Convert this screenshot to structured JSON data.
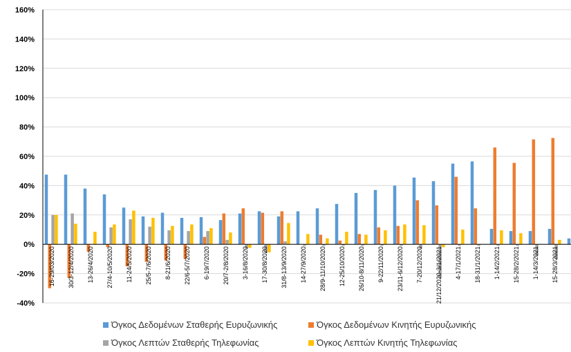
{
  "chart_data": {
    "type": "bar",
    "title": "",
    "xlabel": "",
    "ylabel": "",
    "ylim": [
      -40,
      160
    ],
    "yticks": [
      "-40%",
      "-20%",
      "0%",
      "20%",
      "40%",
      "60%",
      "80%",
      "100%",
      "120%",
      "140%",
      "160%"
    ],
    "ytick_values": [
      -40,
      -20,
      0,
      20,
      40,
      60,
      80,
      100,
      120,
      140,
      160
    ],
    "grid": true,
    "legend_position": "bottom",
    "categories": [
      "16-29/03/2020",
      "30/3-12/4/2020",
      "13-26/4/2020",
      "27/4-10/5/2020",
      "11-24/5/2020",
      "25/5-7/6/2020",
      "8-21/6/2020",
      "22/6-5/7/2020",
      "6-19/7/2020",
      "20/7-2/8/2020",
      "3-16/8/2020",
      "17-30/8/2020",
      "31/8-13/9/2020",
      "14-27/9/2020",
      "28/9-11/10/2020",
      "12-25/10/2020",
      "26/10-8/11/2020",
      "9-22/11/2020",
      "23/11-6/12/2020",
      "7-20/12/2020",
      "21/12/2020-3/1/2021",
      "4-17/1/2021",
      "18-31/1/2021",
      "1-14/2/2021",
      "15-28/2/2021",
      "1-14/3/2021",
      "15-28/3/2021"
    ],
    "series": [
      {
        "name": "Όγκος Δεδομένων Σταθερής Ευρυζωνικής",
        "color": "#5B9BD5",
        "values": [
          47.5,
          47.5,
          38,
          34,
          25,
          19,
          21.5,
          18,
          18.5,
          16.5,
          21,
          22.5,
          19,
          22.5,
          24.5,
          27.5,
          35,
          37,
          40,
          45.5,
          43,
          55,
          56.5,
          10.5,
          9,
          9,
          10.5
        ]
      },
      {
        "name": "Όγκος Δεδομένων Κινητής Ευρυζωνικής",
        "color": "#ED7D31",
        "values": [
          -30,
          -23,
          -5,
          -2,
          -15,
          -12,
          -11,
          -10,
          5,
          21,
          24.5,
          21.5,
          22.5,
          0,
          6.5,
          2.5,
          7,
          11.5,
          12.5,
          30,
          26.5,
          46,
          24.5,
          66,
          55.5,
          71.5,
          72.5
        ]
      },
      {
        "name": "Όγκος Λεπτών Σταθερής Τηλεφωνίας",
        "color": "#A5A5A5",
        "values": [
          20,
          21,
          0,
          11.5,
          17,
          12,
          9.5,
          9,
          9,
          3,
          -3,
          -6,
          2,
          -1,
          -1,
          -1,
          -1,
          -1,
          -1,
          -3,
          -23,
          -1,
          -1,
          -1,
          -1,
          -8,
          -10
        ]
      },
      {
        "name": "Όγκος Λεπτών Κινητής Τηλεφωνίας",
        "color": "#FFC000",
        "values": [
          20,
          14,
          8.5,
          13.5,
          23,
          18,
          12.5,
          13.5,
          11,
          8,
          -2.5,
          -5.5,
          14.5,
          7,
          4,
          8.5,
          6.5,
          9.5,
          13.5,
          13,
          -2,
          10,
          0,
          9.5,
          7.5,
          0,
          3
        ]
      }
    ],
    "extra_bar": {
      "series_index": 0,
      "value": 4
    }
  }
}
